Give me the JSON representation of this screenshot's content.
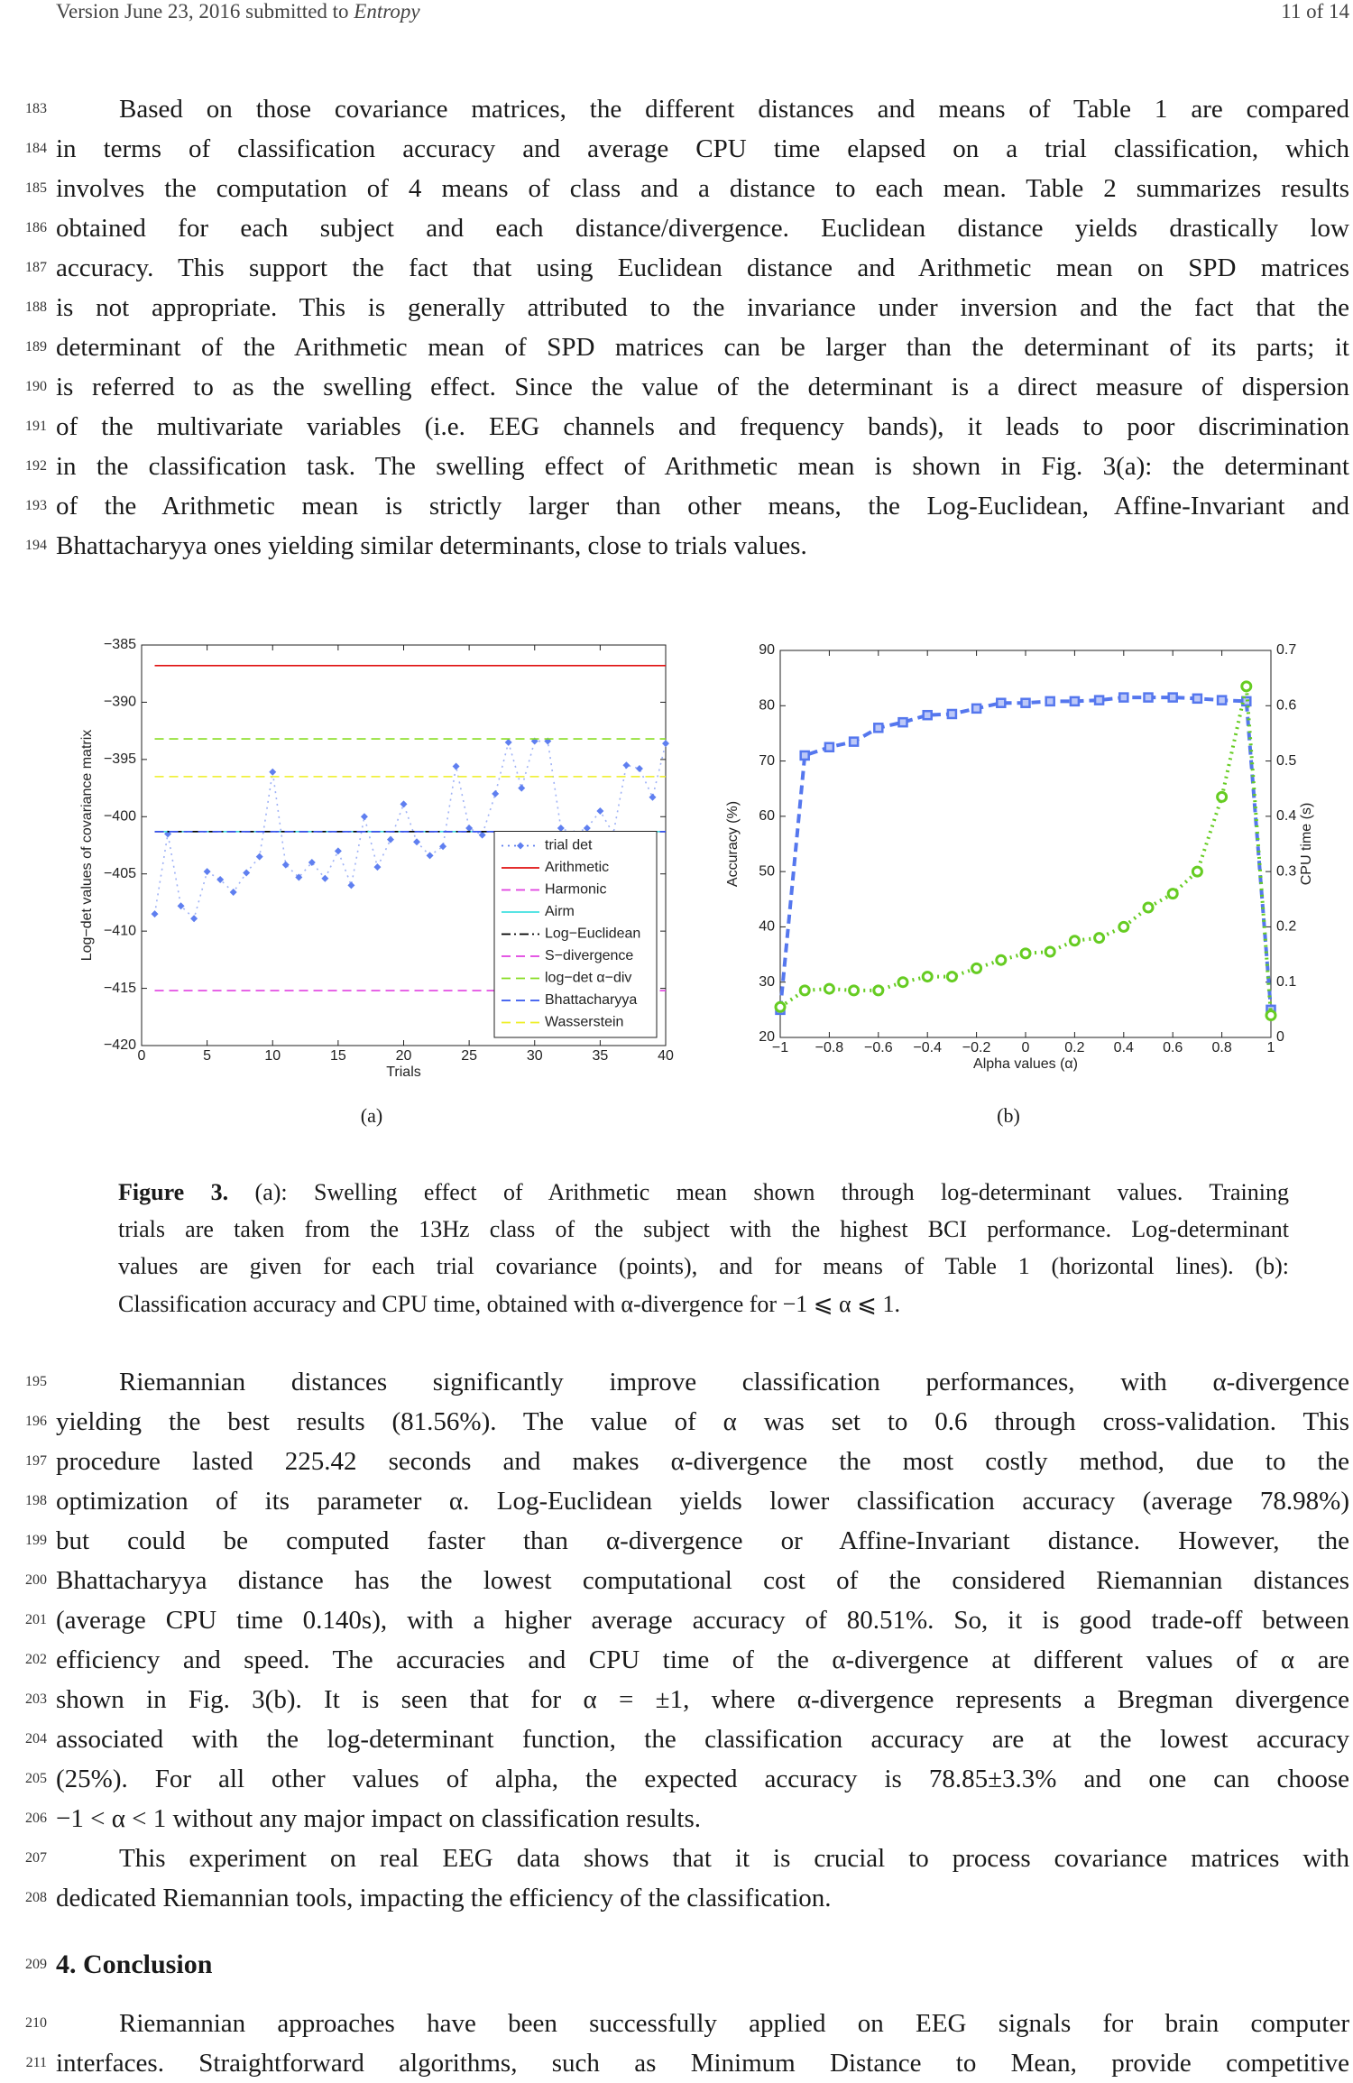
{
  "header": {
    "left": "Version June 23, 2016 submitted to",
    "journal": "Entropy",
    "page": "11 of 14"
  },
  "paragraphs": [
    {
      "line_numbers": [
        183,
        184,
        185,
        186,
        187,
        188,
        189,
        190,
        191,
        192,
        193,
        194
      ],
      "lines": [
        "Based on those covariance matrices, the different distances and means of Table 1 are compared",
        "in terms of classification accuracy and average CPU time elapsed on a trial classification, which",
        "involves the computation of 4 means of class and a distance to each mean. Table 2 summarizes results",
        "obtained for each subject and each distance/divergence. Euclidean distance yields drastically low",
        "accuracy. This support the fact that using Euclidean distance and Arithmetic mean on SPD matrices",
        "is not appropriate. This is generally attributed to the invariance under inversion and the fact that the",
        "determinant of the Arithmetic mean of SPD matrices can be larger than the determinant of its parts; it",
        "is referred to as the swelling effect. Since the value of the determinant is a direct measure of dispersion",
        "of the multivariate variables (i.e. EEG channels and frequency bands), it leads to poor discrimination",
        "in the classification task. The swelling effect of Arithmetic mean is shown in Fig. 3(a): the determinant",
        "of the Arithmetic mean is strictly larger than other means, the Log-Euclidean, Affine-Invariant and",
        "Bhattacharyya ones yielding similar determinants, close to trials values."
      ]
    },
    {
      "line_numbers": [
        195,
        196,
        197,
        198,
        199,
        200,
        201,
        202,
        203,
        204,
        205,
        206
      ],
      "lines": [
        "Riemannian distances significantly improve classification performances, with α-divergence",
        "yielding the best results (81.56%). The value of α was set to 0.6 through cross-validation. This",
        "procedure lasted 225.42 seconds and makes α-divergence the most costly method, due to the",
        "optimization of its parameter α. Log-Euclidean yields lower classification accuracy (average 78.98%)",
        "but could be computed faster than α-divergence or Affine-Invariant distance. However, the",
        "Bhattacharyya distance has the lowest computational cost of the considered Riemannian distances",
        "(average CPU time 0.140s), with a higher average accuracy of 80.51%. So, it is good trade-off between",
        "efficiency and speed. The accuracies and CPU time of the α-divergence at different values of α are",
        "shown in Fig. 3(b). It is seen that for α = ±1, where α-divergence represents a Bregman divergence",
        "associated with the log-determinant function, the classification accuracy are at the lowest accuracy",
        "(25%). For all other values of alpha, the expected accuracy is 78.85±3.3% and one can choose",
        "−1 < α < 1 without any major impact on classification results."
      ]
    },
    {
      "line_numbers": [
        207,
        208
      ],
      "lines": [
        "This experiment on real EEG data shows that it is crucial to process covariance matrices with",
        "dedicated Riemannian tools, impacting the efficiency of the classification."
      ]
    },
    {
      "line_numbers": [
        210,
        211
      ],
      "lines": [
        "Riemannian approaches have been successfully applied on EEG signals for brain computer",
        "interfaces. Straightforward algorithms, such as Minimum Distance to Mean, provide competitive"
      ]
    }
  ],
  "heading": {
    "line_number": 209,
    "text": "4. Conclusion"
  },
  "figure": {
    "sublabels": [
      "(a)",
      "(b)"
    ],
    "caption": {
      "label": "Figure 3.",
      "lines": [
        "(a): Swelling effect of Arithmetic mean shown through log-determinant values. Training",
        "trials are taken from the 13Hz class of the subject with the highest BCI performance. Log-determinant",
        "values are given for each trial covariance (points), and for means of Table 1 (horizontal lines). (b):",
        "Classification accuracy and CPU time, obtained with α-divergence for −1 ⩽ α ⩽ 1."
      ]
    }
  },
  "chart_data": [
    {
      "type": "line",
      "xlabel": "Trials",
      "ylabel": "Log−det values of covariance matrix",
      "x": [
        1,
        2,
        3,
        4,
        5,
        6,
        7,
        8,
        9,
        10,
        11,
        12,
        13,
        14,
        15,
        16,
        17,
        18,
        19,
        20,
        21,
        22,
        23,
        24,
        25,
        26,
        27,
        28,
        29,
        30,
        31,
        32,
        33,
        34,
        35,
        36,
        37,
        38,
        39,
        40
      ],
      "xlim": [
        0,
        40
      ],
      "xticks": [
        0,
        5,
        10,
        15,
        20,
        25,
        30,
        35,
        40
      ],
      "ylim": [
        -420,
        -385
      ],
      "yticks": [
        {
          "value": -420,
          "label": "−420"
        },
        {
          "value": -415,
          "label": "−415"
        },
        {
          "value": -410,
          "label": "−410"
        },
        {
          "value": -405,
          "label": "−405"
        },
        {
          "value": -400,
          "label": "−400"
        },
        {
          "value": -395,
          "label": "−395"
        },
        {
          "value": -390,
          "label": "−390"
        },
        {
          "value": -385,
          "label": "−385"
        }
      ],
      "legend": "lower right",
      "series": [
        {
          "name": "trial det",
          "color": "#5f7ff0",
          "line_style": "dotted",
          "marker": "diamond",
          "values": [
            -408.5,
            -401.5,
            -407.8,
            -408.9,
            -404.8,
            -405.5,
            -406.6,
            -404.9,
            -403.5,
            -396.1,
            -404.2,
            -405.3,
            -404,
            -405.4,
            -403,
            -406,
            -400,
            -404.4,
            -402,
            -398.9,
            -402.2,
            -403.4,
            -402.6,
            -395.6,
            -401,
            -401.6,
            -398,
            -393.5,
            -397.5,
            -393.4,
            -393.4,
            -401,
            -401.5,
            -401,
            -399.5,
            -401.5,
            -395.5,
            -395.8,
            -398.3,
            -393.6
          ]
        },
        {
          "name": "Arithmetic",
          "color": "#e01010",
          "line_style": "solid",
          "value": -386.8
        },
        {
          "name": "Harmonic",
          "color": "#e040e0",
          "line_style": "dashed",
          "value": -415.2
        },
        {
          "name": "Airm",
          "color": "#40e0e0",
          "line_style": "solid",
          "value": -401.3
        },
        {
          "name": "Log−Euclidean",
          "color": "#000000",
          "line_style": "dashdot",
          "value": -401.3
        },
        {
          "name": "S−divergence",
          "color": "#e040e0",
          "line_style": "dashed",
          "value": -401.3
        },
        {
          "name": "log−det α−div",
          "color": "#88dd22",
          "line_style": "dashed",
          "value": -393.2
        },
        {
          "name": "Bhattacharyya",
          "color": "#3355ee",
          "line_style": "dashed",
          "value": -401.3
        },
        {
          "name": "Wasserstein",
          "color": "#eeee22",
          "line_style": "dashed",
          "value": -396.5
        }
      ]
    },
    {
      "type": "line",
      "xlabel": "Alpha values (α)",
      "ylabel": "Accuracy (%)",
      "y2label": "CPU time (s)",
      "x": [
        -1,
        -0.9,
        -0.8,
        -0.7,
        -0.6,
        -0.5,
        -0.4,
        -0.3,
        -0.2,
        -0.1,
        0,
        0.1,
        0.2,
        0.3,
        0.4,
        0.5,
        0.6,
        0.7,
        0.8,
        0.9,
        1
      ],
      "xlim": [
        -1,
        1
      ],
      "xticks": [
        {
          "value": -1,
          "label": "−1"
        },
        {
          "value": -0.8,
          "label": "−0.8"
        },
        {
          "value": -0.6,
          "label": "−0.6"
        },
        {
          "value": -0.4,
          "label": "−0.4"
        },
        {
          "value": -0.2,
          "label": "−0.2"
        },
        0,
        0.2,
        0.4,
        0.6,
        0.8,
        1
      ],
      "ylim": [
        20,
        90
      ],
      "yticks": [
        20,
        30,
        40,
        50,
        60,
        70,
        80,
        90
      ],
      "y2lim": [
        0,
        0.7
      ],
      "y2ticks": [
        0,
        0.1,
        0.2,
        0.3,
        0.4,
        0.5,
        0.6,
        0.7
      ],
      "series": [
        {
          "name": "Accuracy",
          "color": "#5577ee",
          "line_style": "dashed",
          "marker": "square",
          "values": [
            25,
            71,
            72.5,
            73.5,
            76,
            77,
            78.3,
            78.5,
            79.5,
            80.5,
            80.5,
            80.8,
            80.8,
            81,
            81.5,
            81.5,
            81.5,
            81.3,
            81,
            80.8,
            25
          ]
        },
        {
          "name": "CPU time",
          "color": "#66cc22",
          "line_style": "dotted",
          "marker": "circle",
          "axis": "y2",
          "values": [
            0.055,
            0.085,
            0.088,
            0.085,
            0.085,
            0.1,
            0.11,
            0.11,
            0.125,
            0.14,
            0.152,
            0.155,
            0.175,
            0.18,
            0.2,
            0.235,
            0.26,
            0.3,
            0.435,
            0.635,
            0.04
          ]
        }
      ]
    }
  ]
}
